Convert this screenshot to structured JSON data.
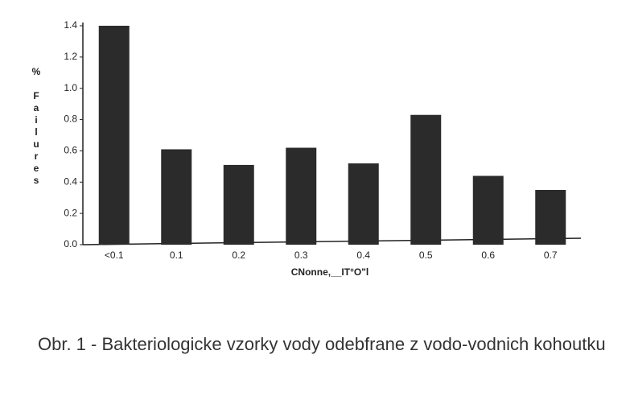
{
  "chart_data": {
    "type": "bar",
    "ylabel": "% Failures",
    "xlabel": "CNonne,__IT°O\"l",
    "caption": "Obr. 1 - Bakteriologicke vzorky vody odebfrane z vodo-vodnich kohoutku",
    "categories": [
      "<0.1",
      "0.1",
      "0.2",
      "0.3",
      "0.4",
      "0.5",
      "0.6",
      "0.7"
    ],
    "values": [
      1.4,
      0.61,
      0.51,
      0.62,
      0.52,
      0.83,
      0.44,
      0.35
    ],
    "color": "#2b2b2b",
    "ylim": [
      0,
      1.4
    ],
    "yticks": [
      {
        "value": 0,
        "label": "0.0"
      },
      0.2,
      0.4,
      0.6,
      0.8,
      {
        "value": 1,
        "label": "1.0"
      },
      1.2,
      1.4
    ]
  }
}
